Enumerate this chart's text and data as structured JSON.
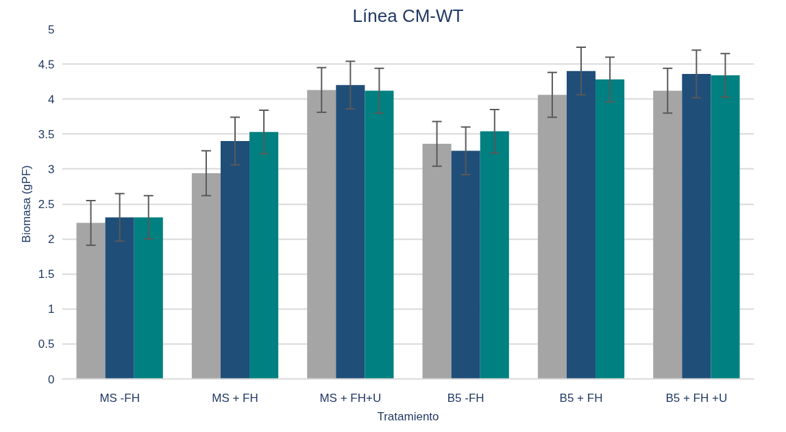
{
  "chart_data": {
    "type": "bar",
    "title": "Línea CM-WT",
    "xlabel": "Tratamiento",
    "ylabel": "Biomasa (gPF)",
    "categories": [
      "MS -FH",
      "MS + FH",
      "MS + FH+U",
      "B5 -FH",
      "B5 + FH",
      "B5 + FH +U"
    ],
    "series": [
      {
        "color": "#a5a5a5",
        "values": [
          2.23,
          2.94,
          4.13,
          3.36,
          4.06,
          4.12
        ],
        "errors": [
          0.32,
          0.32,
          0.32,
          0.32,
          0.32,
          0.32
        ]
      },
      {
        "color": "#1f4e79",
        "values": [
          2.31,
          3.4,
          4.2,
          3.26,
          4.4,
          4.36
        ],
        "errors": [
          0.34,
          0.34,
          0.34,
          0.34,
          0.34,
          0.34
        ]
      },
      {
        "color": "#008080",
        "values": [
          2.31,
          3.53,
          4.12,
          3.54,
          4.28,
          4.34
        ],
        "errors": [
          0.31,
          0.31,
          0.32,
          0.31,
          0.32,
          0.31
        ]
      }
    ],
    "ylim": [
      0,
      5
    ],
    "yticks": [
      0,
      0.5,
      1,
      1.5,
      2,
      2.5,
      3,
      3.5,
      4,
      4.5,
      5
    ],
    "grid": "y"
  }
}
